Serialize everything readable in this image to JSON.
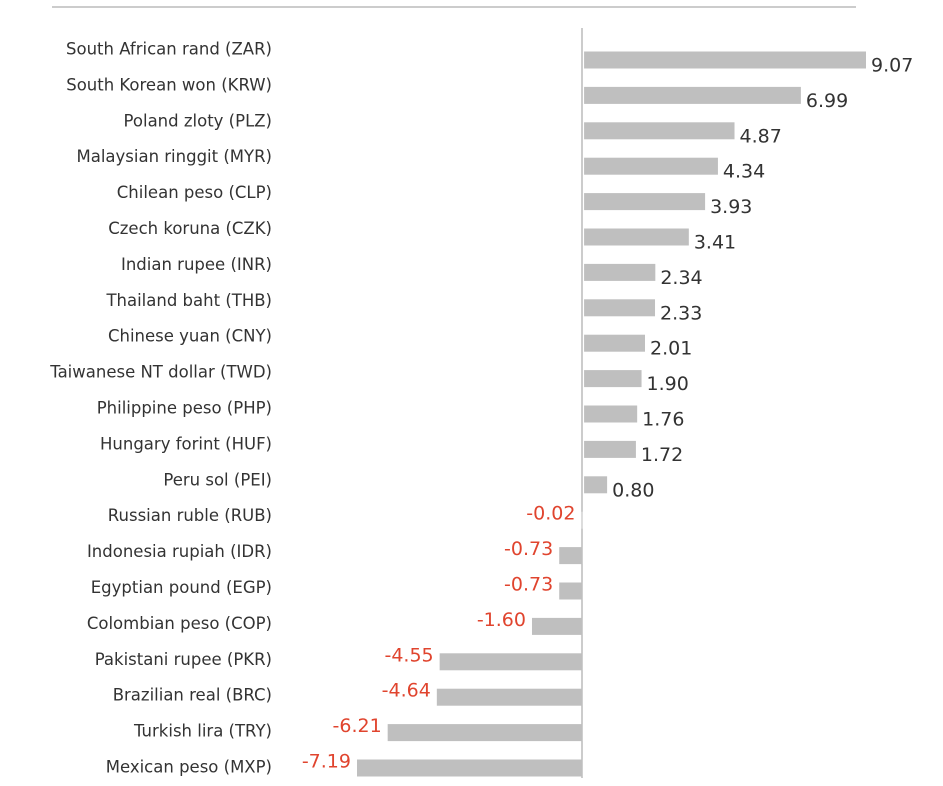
{
  "chart_data": {
    "type": "bar",
    "orientation": "horizontal",
    "categories": [
      "South African rand (ZAR)",
      "South Korean won (KRW)",
      "Poland zloty (PLZ)",
      "Malaysian ringgit (MYR)",
      "Chilean peso (CLP)",
      "Czech koruna (CZK)",
      "Indian rupee (INR)",
      "Thailand baht (THB)",
      "Chinese yuan (CNY)",
      "Taiwanese NT dollar (TWD)",
      "Philippine peso (PHP)",
      "Hungary forint (HUF)",
      "Peru sol (PEI)",
      "Russian ruble (RUB)",
      "Indonesia rupiah (IDR)",
      "Egyptian pound (EGP)",
      "Colombian peso (COP)",
      "Pakistani rupee (PKR)",
      "Brazilian real (BRC)",
      "Turkish lira (TRY)",
      "Mexican peso (MXP)"
    ],
    "values": [
      9.07,
      6.99,
      4.87,
      4.34,
      3.93,
      3.41,
      2.34,
      2.33,
      2.01,
      1.9,
      1.76,
      1.72,
      0.8,
      -0.02,
      -0.73,
      -0.73,
      -1.6,
      -4.55,
      -4.64,
      -6.21,
      -7.19
    ],
    "value_labels": [
      "9.07",
      "6.99",
      "4.87",
      "4.34",
      "3.93",
      "3.41",
      "2.34",
      "2.33",
      "2.01",
      "1.90",
      "1.76",
      "1.72",
      "0.80",
      "-0.02",
      "-0.73",
      "-0.73",
      "-1.60",
      "-4.55",
      "-4.64",
      "-6.21",
      "-7.19"
    ],
    "color": "#bfbfbf",
    "positive_label_color": "#333333",
    "negative_label_color": "#e0442e"
  }
}
